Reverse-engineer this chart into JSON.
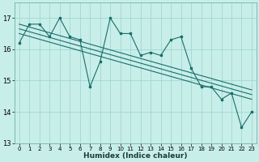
{
  "xlabel": "Humidex (Indice chaleur)",
  "background_color": "#c8eeea",
  "grid_color": "#9fd8d0",
  "line_color": "#1a6e6a",
  "xmin": -0.5,
  "xmax": 23.5,
  "ymin": 13,
  "ymax": 17.5,
  "yticks": [
    13,
    14,
    15,
    16,
    17
  ],
  "xticks": [
    0,
    1,
    2,
    3,
    4,
    5,
    6,
    7,
    8,
    9,
    10,
    11,
    12,
    13,
    14,
    15,
    16,
    17,
    18,
    19,
    20,
    21,
    22,
    23
  ],
  "series1_x": [
    0,
    1,
    2,
    3,
    4,
    5,
    6,
    7,
    8,
    9,
    10,
    11,
    12,
    13,
    14,
    15,
    16,
    17,
    18,
    19,
    20,
    21,
    22,
    23
  ],
  "series1_y": [
    16.2,
    16.8,
    16.8,
    16.4,
    17.0,
    16.4,
    16.3,
    14.8,
    15.6,
    17.0,
    16.5,
    16.5,
    15.8,
    15.9,
    15.8,
    16.3,
    16.4,
    15.4,
    14.8,
    14.8,
    14.4,
    14.6,
    13.5,
    14.0
  ],
  "trend1_x": [
    0,
    23
  ],
  "trend1_y": [
    16.8,
    14.7
  ],
  "trend2_x": [
    0,
    23
  ],
  "trend2_y": [
    16.65,
    14.55
  ],
  "trend3_x": [
    0,
    23
  ],
  "trend3_y": [
    16.5,
    14.4
  ]
}
